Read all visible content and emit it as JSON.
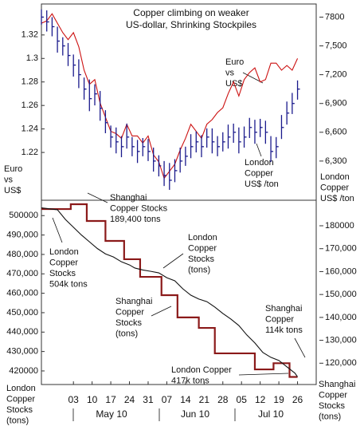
{
  "chart_data": [
    {
      "type": "line",
      "title": [
        "Copper climbing on weaker",
        "US-dollar, Shrinking Stockpiles"
      ],
      "ylabel": [
        "Euro",
        "vs",
        "US$"
      ],
      "y2label": [
        "London",
        "Copper",
        "US$ /ton"
      ],
      "annotations": [
        {
          "text": [
            "Euro",
            "vs",
            "US$"
          ]
        },
        {
          "text": [
            "London",
            "Copper",
            "US$ /ton"
          ]
        }
      ],
      "x": [
        -10,
        -8,
        -6,
        -4,
        -2,
        0,
        2,
        4,
        6,
        8,
        10,
        12,
        14,
        16,
        18,
        20,
        22,
        24,
        26,
        28,
        30,
        32,
        34,
        36,
        38,
        40,
        42,
        44,
        46,
        48,
        50,
        52,
        54,
        56,
        58,
        60,
        62,
        64,
        66,
        68,
        70,
        72,
        74,
        76,
        78,
        80,
        82,
        84,
        86
      ],
      "xlim": [
        -10,
        93
      ],
      "ylim": [
        1.18,
        1.345
      ],
      "yticks": [
        1.22,
        1.24,
        1.26,
        1.28,
        1.3,
        1.32
      ],
      "y2lim": [
        5900,
        7920
      ],
      "y2ticks": [
        {
          "value": 6300,
          "label": "6,300"
        },
        {
          "value": 6600,
          "label": "6,600"
        },
        {
          "value": 6900,
          "label": "6,900"
        },
        {
          "value": 7200,
          "label": "7,200"
        },
        {
          "value": 7500,
          "label": "7,500"
        },
        7800
      ],
      "series": [
        {
          "type": "line",
          "axis": "y",
          "color": "#cc1111",
          "values": [
            1.33,
            1.332,
            1.338,
            1.33,
            1.322,
            1.316,
            1.322,
            1.31,
            1.29,
            1.278,
            1.282,
            1.262,
            1.25,
            1.238,
            1.236,
            1.232,
            1.244,
            1.234,
            1.234,
            1.228,
            1.234,
            1.218,
            1.212,
            1.198,
            1.204,
            1.21,
            1.222,
            1.232,
            1.244,
            1.238,
            1.232,
            1.244,
            1.248,
            1.254,
            1.258,
            1.27,
            1.28,
            1.268,
            1.282,
            1.288,
            1.292,
            1.28,
            1.282,
            1.296,
            1.296,
            1.29,
            1.294,
            1.29,
            1.3
          ]
        },
        {
          "type": "hlc",
          "axis": "y2",
          "color": "#1a1a8c",
          "values": [
            7800,
            7750,
            7700,
            7550,
            7500,
            7400,
            7300,
            7200,
            7050,
            6950,
            7000,
            6850,
            6700,
            6550,
            6500,
            6450,
            6550,
            6450,
            6400,
            6450,
            6400,
            6300,
            6250,
            6150,
            6100,
            6200,
            6300,
            6350,
            6450,
            6500,
            6450,
            6550,
            6500,
            6450,
            6500,
            6550,
            6600,
            6500,
            6550,
            6650,
            6600,
            6650,
            6600,
            6400,
            6450,
            6650,
            6800,
            6900,
            7050
          ],
          "high": [
            7880,
            7870,
            7800,
            7700,
            7590,
            7530,
            7410,
            7360,
            7170,
            7150,
            7100,
            7030,
            6830,
            6670,
            6650,
            6560,
            6690,
            6550,
            6520,
            6540,
            6530,
            6440,
            6360,
            6300,
            6280,
            6320,
            6440,
            6450,
            6580,
            6610,
            6570,
            6640,
            6640,
            6560,
            6600,
            6680,
            6690,
            6650,
            6660,
            6750,
            6730,
            6740,
            6720,
            6560,
            6550,
            6780,
            6920,
            7010,
            7140
          ],
          "low": [
            7720,
            7650,
            7600,
            7430,
            7400,
            7290,
            7180,
            7060,
            6940,
            6820,
            6880,
            6720,
            6590,
            6440,
            6380,
            6340,
            6430,
            6350,
            6280,
            6350,
            6300,
            6190,
            6140,
            6040,
            6000,
            6080,
            6180,
            6250,
            6330,
            6390,
            6340,
            6440,
            6380,
            6350,
            6400,
            6430,
            6490,
            6380,
            6440,
            6540,
            6480,
            6550,
            6480,
            6290,
            6330,
            6530,
            6680,
            6790,
            6940
          ]
        }
      ]
    },
    {
      "type": "line",
      "ylabel": [
        "London",
        "Copper",
        "Stocks",
        "(tons)"
      ],
      "y2label": [
        "Shanghai",
        "Copper",
        "Stocks",
        "(tons)"
      ],
      "annotations": [
        {
          "text": [
            "Shanghai",
            "Copper Stocks",
            "189,400 tons"
          ]
        },
        {
          "text": [
            "London",
            "Copper",
            "Stocks",
            "504k tons"
          ]
        },
        {
          "text": [
            "London",
            "Copper",
            "Stocks",
            "(tons)"
          ]
        },
        {
          "text": [
            "Shanghai",
            "Copper",
            "Stocks",
            "(tons)"
          ]
        },
        {
          "text": [
            "Shanghai",
            "Copper",
            "114k tons"
          ]
        },
        {
          "text": [
            "London Copper",
            "417k tons"
          ]
        }
      ],
      "xlim": [
        -10,
        93
      ],
      "xticks": [
        {
          "value": 2,
          "label": "03"
        },
        {
          "value": 9,
          "label": "10"
        },
        {
          "value": 16,
          "label": "17"
        },
        {
          "value": 23,
          "label": "24"
        },
        {
          "value": 30,
          "label": "31"
        },
        {
          "value": 37,
          "label": "07"
        },
        {
          "value": 44,
          "label": "14"
        },
        {
          "value": 51,
          "label": "21"
        },
        {
          "value": 58,
          "label": "28"
        },
        {
          "value": 65,
          "label": "05"
        },
        {
          "value": 72,
          "label": "12"
        },
        {
          "value": 79,
          "label": "19"
        },
        {
          "value": 86,
          "label": "26"
        }
      ],
      "x_groups": [
        "May 10",
        "Jun 10",
        "Jul 10"
      ],
      "ylim": [
        413000,
        507500
      ],
      "yticks": [
        420000,
        {
          "value": 430000,
          "label": "430,000"
        },
        {
          "value": 440000,
          "label": "440,000"
        },
        {
          "value": 450000,
          "label": "450,000"
        },
        {
          "value": 460000,
          "label": "460,000"
        },
        {
          "value": 470000,
          "label": "470,000"
        },
        {
          "value": 480000,
          "label": "480,000"
        },
        {
          "value": 490000,
          "label": "490,000"
        },
        500000
      ],
      "y2lim": [
        110700,
        190800
      ],
      "y2ticks": [
        {
          "value": 120000,
          "label": "120,000"
        },
        {
          "value": 130000,
          "label": "130,000"
        },
        {
          "value": 140000,
          "label": "140,000"
        },
        {
          "value": 150000,
          "label": "150,000"
        },
        {
          "value": 160000,
          "label": "160,000"
        },
        {
          "value": 170000,
          "label": "170,000"
        },
        180000
      ],
      "series": [
        {
          "type": "step",
          "axis": "y2",
          "color": "#8b1a1a",
          "x": [
            -10,
            1,
            7,
            14,
            21,
            27,
            35,
            41,
            49,
            55,
            63,
            70,
            77,
            83,
            86
          ],
          "values": [
            187300,
            189400,
            182100,
            173400,
            165400,
            157700,
            149700,
            140000,
            135400,
            124300,
            124300,
            117300,
            120000,
            114000,
            114000
          ]
        },
        {
          "type": "line",
          "axis": "y",
          "color": "#111111",
          "x": [
            -10,
            -4,
            -1,
            2,
            5,
            8,
            11,
            14,
            17,
            20,
            23,
            25,
            28,
            31,
            34,
            37,
            40,
            43,
            46,
            49,
            52,
            55,
            58,
            61,
            64,
            67,
            70,
            73,
            76,
            79,
            82,
            85,
            86
          ],
          "values": [
            504000,
            503000,
            498000,
            494000,
            490000,
            486500,
            483000,
            480300,
            478700,
            476200,
            474600,
            473000,
            472000,
            471300,
            470500,
            468000,
            466400,
            462300,
            459000,
            457000,
            455700,
            452900,
            449600,
            446700,
            443400,
            438500,
            434400,
            429500,
            427000,
            425400,
            422100,
            418900,
            417000
          ]
        }
      ]
    }
  ]
}
